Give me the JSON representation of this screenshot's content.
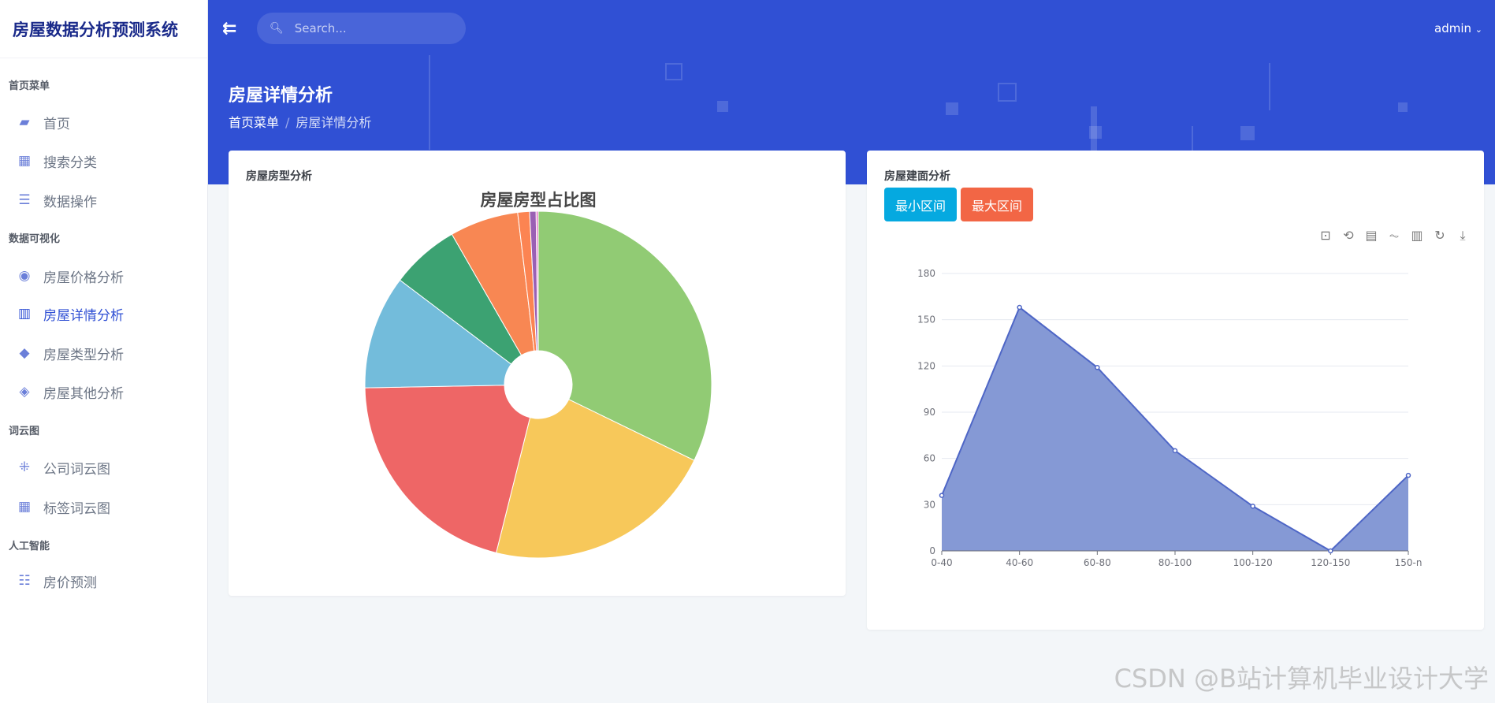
{
  "app": {
    "title": "房屋数据分析预测系统"
  },
  "sidebar": {
    "sections": [
      {
        "label": "首页菜单",
        "items": [
          {
            "label": "首页",
            "icon": "monitor-icon"
          },
          {
            "label": "搜索分类",
            "icon": "calendar-icon"
          },
          {
            "label": "数据操作",
            "icon": "chat-icon"
          }
        ]
      },
      {
        "label": "数据可视化",
        "items": [
          {
            "label": "房屋价格分析",
            "icon": "arrow-circle-icon"
          },
          {
            "label": "房屋详情分析",
            "icon": "columns-icon",
            "active": true
          },
          {
            "label": "房屋类型分析",
            "icon": "cube-icon"
          },
          {
            "label": "房屋其他分析",
            "icon": "layers-icon"
          }
        ]
      },
      {
        "label": "词云图",
        "items": [
          {
            "label": "公司词云图",
            "icon": "nodes-icon"
          },
          {
            "label": "标签词云图",
            "icon": "grid-icon"
          }
        ]
      },
      {
        "label": "人工智能",
        "items": [
          {
            "label": "房价预测",
            "icon": "list-icon"
          }
        ]
      }
    ]
  },
  "topbar": {
    "search_placeholder": "Search...",
    "user": "admin"
  },
  "header": {
    "title": "房屋详情分析",
    "breadcrumb": [
      "首页菜单",
      "房屋详情分析"
    ]
  },
  "left_card": {
    "title": "房屋房型分析"
  },
  "right_card": {
    "title": "房屋建面分析",
    "buttons": [
      "最小区间",
      "最大区间"
    ],
    "toolbox": [
      "zoom-icon",
      "zoom-reset-icon",
      "data-view-icon",
      "line-icon",
      "bar-icon",
      "restore-icon",
      "download-icon"
    ]
  },
  "colors": {
    "primary": "#3050d4",
    "btn_min": "#05a9e0",
    "btn_max": "#f26645",
    "area": "#8599d5",
    "line": "#4e66c6"
  },
  "watermark": "CSDN @B站计算机毕业设计大学",
  "chart_data": [
    {
      "type": "pie",
      "title": "房屋房型占比图",
      "donut": true,
      "values_percent": [
        32.2,
        21.7,
        20.8,
        10.6,
        6.4,
        6.4,
        1.1,
        0.6,
        0.2
      ],
      "colors": [
        "#91cb74",
        "#f7c85a",
        "#ee6666",
        "#73bcdb",
        "#3ca272",
        "#f88753",
        "#fc8452",
        "#9a60b4",
        "#ea7ccc"
      ]
    },
    {
      "type": "area",
      "categories": [
        "0-40",
        "40-60",
        "60-80",
        "80-100",
        "100-120",
        "120-150",
        "150-n"
      ],
      "values": [
        36,
        158,
        119,
        65,
        29,
        0,
        49
      ],
      "ylim": [
        0,
        180
      ],
      "yticks": [
        0,
        30,
        60,
        90,
        120,
        150,
        180
      ],
      "grid": true
    }
  ]
}
